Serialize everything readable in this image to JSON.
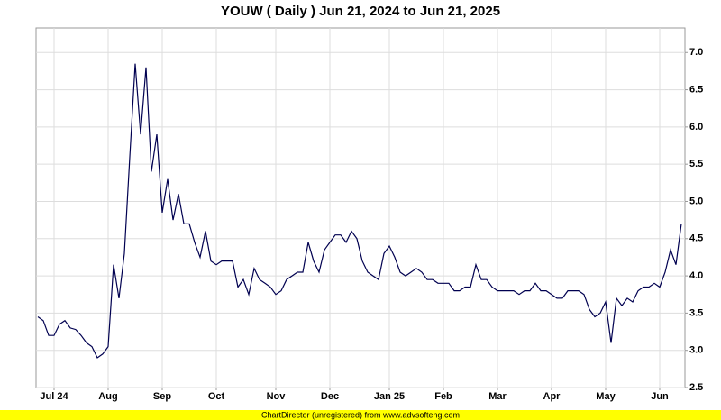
{
  "chart_data": {
    "type": "line",
    "title": "YOUW ( Daily ) Jun 21, 2024 to Jun 21, 2025",
    "footer": "ChartDirector (unregistered) from www.advsofteng.com",
    "categories": [
      null,
      null,
      null,
      "Jul 24",
      null,
      null,
      null,
      null,
      null,
      null,
      null,
      null,
      null,
      "Aug",
      null,
      null,
      null,
      null,
      null,
      null,
      null,
      null,
      null,
      "Sep",
      null,
      null,
      null,
      null,
      null,
      null,
      null,
      null,
      null,
      "Oct",
      null,
      null,
      null,
      null,
      null,
      null,
      null,
      null,
      null,
      null,
      "Nov",
      null,
      null,
      null,
      null,
      null,
      null,
      null,
      null,
      null,
      "Dec",
      null,
      null,
      null,
      null,
      null,
      null,
      null,
      null,
      null,
      null,
      "Jan 25",
      null,
      null,
      null,
      null,
      null,
      null,
      null,
      null,
      null,
      "Feb",
      null,
      null,
      null,
      null,
      null,
      null,
      null,
      null,
      null,
      "Mar",
      null,
      null,
      null,
      null,
      null,
      null,
      null,
      null,
      null,
      "Apr",
      null,
      null,
      null,
      null,
      null,
      null,
      null,
      null,
      null,
      "May",
      null,
      null,
      null,
      null,
      null,
      null,
      null,
      null,
      null,
      "Jun",
      null,
      null,
      null,
      null
    ],
    "series": [
      {
        "name": "YOUW",
        "color": "#000050",
        "values": [
          3.45,
          3.4,
          3.2,
          3.2,
          3.35,
          3.4,
          3.3,
          3.28,
          3.2,
          3.1,
          3.05,
          2.9,
          2.95,
          3.05,
          4.15,
          3.7,
          4.3,
          5.6,
          6.85,
          5.9,
          6.8,
          5.4,
          5.9,
          4.85,
          5.3,
          4.75,
          5.1,
          4.7,
          4.7,
          4.45,
          4.25,
          4.6,
          4.2,
          4.15,
          4.2,
          4.2,
          4.2,
          3.85,
          3.95,
          3.75,
          4.1,
          3.95,
          3.9,
          3.85,
          3.75,
          3.8,
          3.95,
          4.0,
          4.05,
          4.05,
          4.45,
          4.2,
          4.05,
          4.35,
          4.45,
          4.55,
          4.55,
          4.45,
          4.6,
          4.5,
          4.2,
          4.05,
          4.0,
          3.95,
          4.3,
          4.4,
          4.25,
          4.05,
          4.0,
          4.05,
          4.1,
          4.05,
          3.95,
          3.95,
          3.9,
          3.9,
          3.9,
          3.8,
          3.8,
          3.85,
          3.85,
          4.15,
          3.95,
          3.95,
          3.85,
          3.8,
          3.8,
          3.8,
          3.8,
          3.75,
          3.8,
          3.8,
          3.9,
          3.8,
          3.8,
          3.75,
          3.7,
          3.7,
          3.8,
          3.8,
          3.8,
          3.75,
          3.55,
          3.45,
          3.5,
          3.65,
          3.1,
          3.7,
          3.6,
          3.7,
          3.65,
          3.8,
          3.85,
          3.85,
          3.9,
          3.85,
          4.05,
          4.35,
          4.15,
          4.7
        ]
      }
    ],
    "ylim": [
      2.5,
      7.33
    ],
    "yticks": [
      2.5,
      {
        "value": 3,
        "label": "3.0"
      },
      3.5,
      {
        "value": 4,
        "label": "4.0"
      },
      4.5,
      {
        "value": 5,
        "label": "5.0"
      },
      5.5,
      {
        "value": 6,
        "label": "6.0"
      },
      6.5,
      {
        "value": 7,
        "label": "7.0"
      }
    ],
    "grid": true
  }
}
